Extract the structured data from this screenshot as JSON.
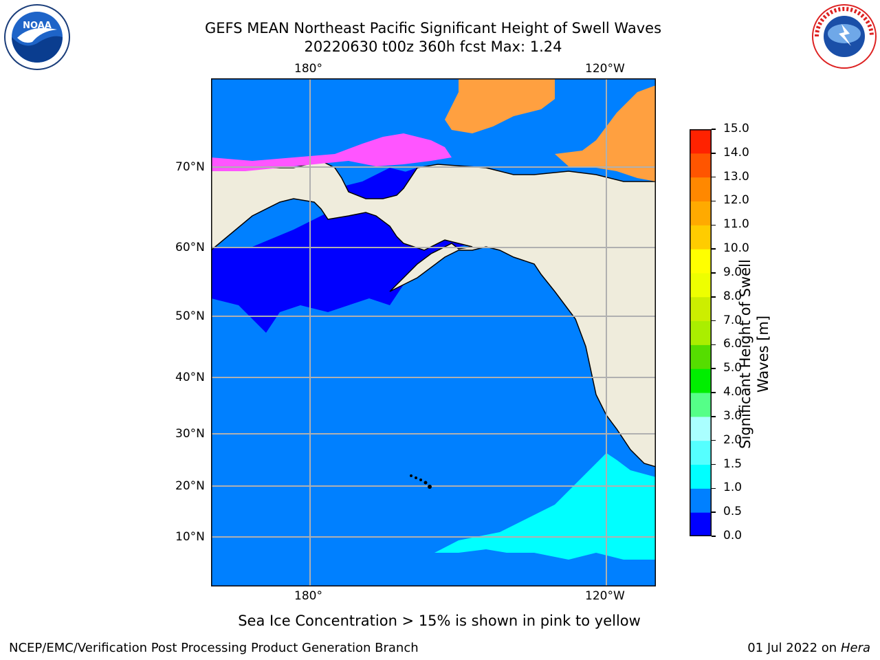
{
  "header": {
    "title_line1": "GEFS MEAN Northeast Pacific Significant Height of Swell Waves",
    "title_line2": "20220630 t00z 360h fcst   Max: 1.24"
  },
  "logos": {
    "left": "NOAA",
    "left_icon": "noaa-logo-icon",
    "right": "NATIONAL WEATHER SERVICE",
    "right_icon": "nws-logo-icon"
  },
  "map": {
    "lon_labels": [
      "180°",
      "120°W"
    ],
    "lat_labels": [
      "70°N",
      "60°N",
      "50°N",
      "40°N",
      "30°N",
      "20°N",
      "10°N"
    ],
    "colors": {
      "ocean_base": "#0080ff",
      "ocean_low": "#0000ff",
      "ocean_mid": "#00ffff",
      "land": "#efecdc",
      "ice_pink": "#ff55ff",
      "ice_orange": "#ffa040",
      "grid": "#b0b0b0"
    }
  },
  "colorbar": {
    "label": "Significant Height of Swell Waves [m]",
    "ticks": [
      "0.0",
      "0.5",
      "1.0",
      "1.5",
      "2.0",
      "3.0",
      "4.0",
      "5.0",
      "6.0",
      "7.0",
      "8.0",
      "9.0",
      "10.0",
      "11.0",
      "12.0",
      "13.0",
      "14.0",
      "15.0"
    ],
    "colors": [
      "#0000ff",
      "#0080ff",
      "#00ffff",
      "#55ffff",
      "#aaffff",
      "#55ff88",
      "#00ee00",
      "#55dd00",
      "#aaee00",
      "#ccee00",
      "#eeff00",
      "#ffff00",
      "#ffcc00",
      "#ffaa00",
      "#ff8800",
      "#ff5500",
      "#ff2200",
      "#ff0000"
    ]
  },
  "note": "Sea Ice Concentration > 15% is shown in pink to yellow",
  "footer": {
    "left": "NCEP/EMC/Verification Post Processing Product Generation Branch",
    "right_date": "01 Jul 2022 on ",
    "right_host": "Hera"
  }
}
